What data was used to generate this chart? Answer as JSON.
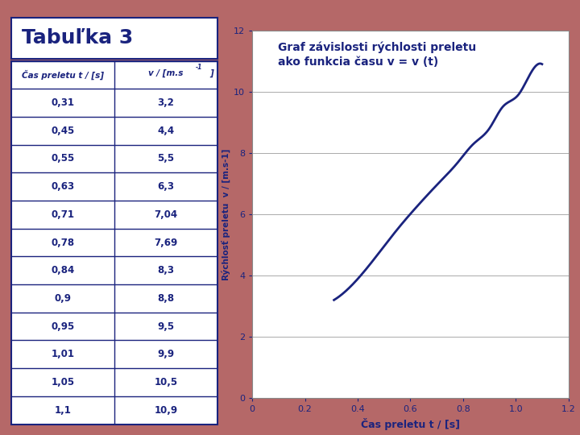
{
  "title": "Tabuľka 3",
  "col1_header_line1": "Čas preletu t / [s]",
  "col2_header": "v / [m.s-1]",
  "t_values": [
    0.31,
    0.45,
    0.55,
    0.63,
    0.71,
    0.78,
    0.84,
    0.9,
    0.95,
    1.01,
    1.05,
    1.1
  ],
  "v_values": [
    3.2,
    4.4,
    5.5,
    6.3,
    7.04,
    7.69,
    8.3,
    8.8,
    9.5,
    9.9,
    10.5,
    10.9
  ],
  "t_display": [
    "0,31",
    "0,45",
    "0,55",
    "0,63",
    "0,71",
    "0,78",
    "0,84",
    "0,9",
    "0,95",
    "1,01",
    "1,05",
    "1,1"
  ],
  "v_display": [
    "3,2",
    "4,4",
    "5,5",
    "6,3",
    "7,04",
    "7,69",
    "8,3",
    "8,8",
    "9,5",
    "9,9",
    "10,5",
    "10,9"
  ],
  "bg_color": "#b56868",
  "table_bg": "#ffffff",
  "title_color": "#1a237e",
  "header_color": "#1a237e",
  "cell_color": "#1a237e",
  "grid_line_color": "#1a237e",
  "graph_title_line1": "Graf závislosti rýchlosti preletu",
  "graph_title_line2": "ako funkcia času v = v (t)",
  "graph_title_color": "#1a237e",
  "graph_xlabel": "Čas preletu t / [s]",
  "graph_ylabel": "Rýchlosť preletu  v / [m.s-1]",
  "graph_label_color": "#1a237e",
  "line_color": "#1a237e",
  "graph_bg": "#ffffff",
  "xlim": [
    0,
    1.2
  ],
  "ylim": [
    0,
    12
  ],
  "xticks": [
    0,
    0.2,
    0.4,
    0.6,
    0.8,
    1.0,
    1.2
  ],
  "yticks": [
    0,
    2,
    4,
    6,
    8,
    10,
    12
  ]
}
